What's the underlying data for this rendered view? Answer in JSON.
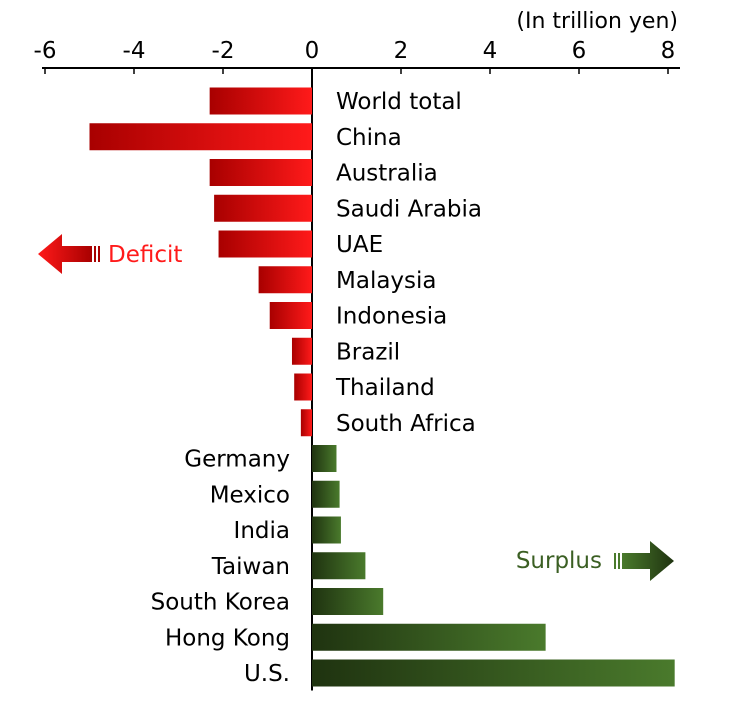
{
  "chart_data": {
    "type": "bar",
    "orientation": "horizontal",
    "unit_label": "(In trillion yen)",
    "xlim": [
      -6,
      8
    ],
    "x_ticks": [
      -6,
      -4,
      -2,
      0,
      2,
      4,
      6,
      8
    ],
    "x_tick_labels": [
      "-6",
      "-4",
      "-2",
      "0",
      "2",
      "4",
      "6",
      "8"
    ],
    "categories": [
      "World total",
      "China",
      "Australia",
      "Saudi Arabia",
      "UAE",
      "Malaysia",
      "Indonesia",
      "Brazil",
      "Thailand",
      "South Africa",
      "Germany",
      "Mexico",
      "India",
      "Taiwan",
      "South Korea",
      "Hong Kong",
      "U.S."
    ],
    "values": [
      -2.3,
      -5.0,
      -2.3,
      -2.2,
      -2.1,
      -1.2,
      -0.95,
      -0.45,
      -0.4,
      -0.25,
      0.55,
      0.62,
      0.65,
      1.2,
      1.6,
      5.25,
      8.15
    ],
    "annotations": {
      "deficit": "Deficit",
      "surplus": "Surplus"
    },
    "colors": {
      "deficit_dark": "#a80000",
      "deficit_light": "#ff1a1a",
      "surplus_dark": "#1f3310",
      "surplus_light": "#4a7a2c"
    },
    "grid": false
  }
}
